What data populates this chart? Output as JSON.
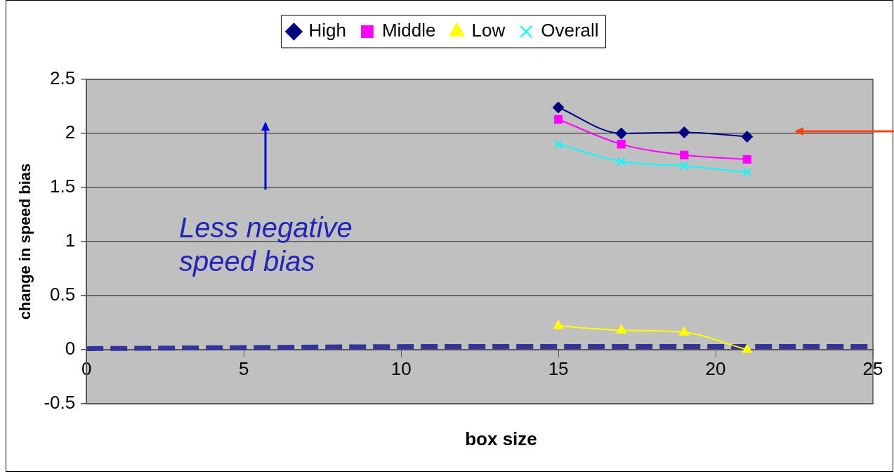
{
  "chart_data": {
    "type": "line",
    "xlabel": "box size",
    "ylabel": "change in speed bias",
    "xlim": [
      0,
      25
    ],
    "xticks": [
      0,
      5,
      10,
      15,
      20,
      25
    ],
    "ylim": [
      -0.5,
      2.5
    ],
    "yticks": [
      -0.5,
      0,
      0.5,
      1,
      1.5,
      2,
      2.5
    ],
    "grid": "y",
    "legend": "top",
    "series": [
      {
        "name": "High",
        "color": "#000080",
        "marker": "diamond",
        "x": [
          15,
          17,
          19,
          21
        ],
        "values": [
          2.24,
          2.0,
          2.01,
          1.97
        ]
      },
      {
        "name": "Middle",
        "color": "#ff00ff",
        "marker": "square",
        "x": [
          15,
          17,
          19,
          21
        ],
        "values": [
          2.13,
          1.9,
          1.8,
          1.76
        ]
      },
      {
        "name": "Low",
        "color": "#ffff00",
        "marker": "triangle",
        "x": [
          15,
          17,
          19,
          21
        ],
        "values": [
          0.22,
          0.18,
          0.16,
          0.0
        ]
      },
      {
        "name": "Overall",
        "color": "#00ffff",
        "marker": "cross",
        "x": [
          15,
          17,
          19,
          21
        ],
        "values": [
          1.9,
          1.74,
          1.7,
          1.64
        ]
      },
      {
        "color": "#333399",
        "marker": "none",
        "line_style": "dashed",
        "x": [
          0,
          13,
          25
        ],
        "values": [
          0.01,
          0.03,
          0.03
        ]
      }
    ],
    "annotations": [
      "Less negative speed bias"
    ]
  }
}
